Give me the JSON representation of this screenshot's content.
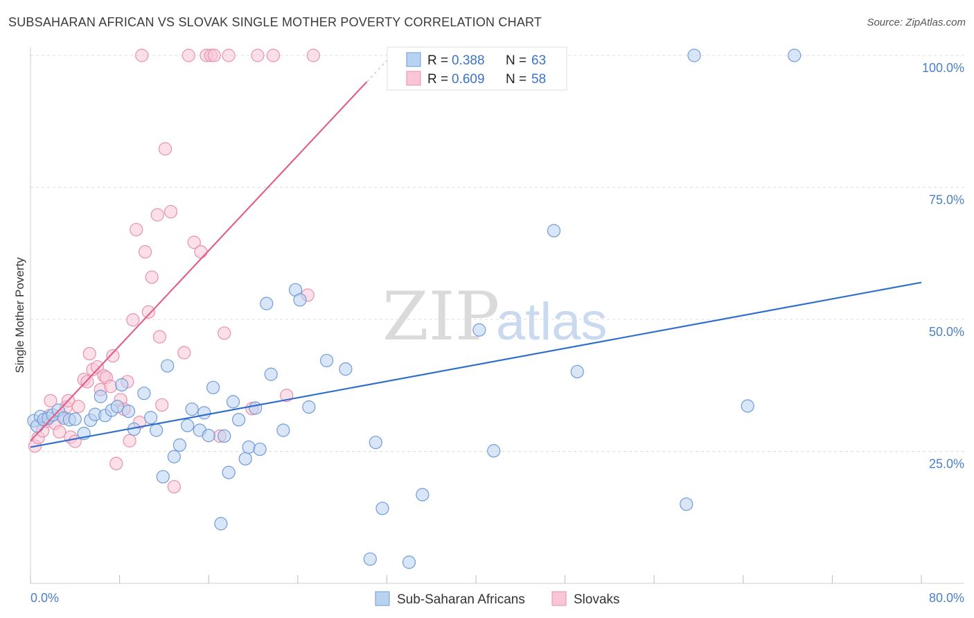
{
  "title": "SUBSAHARAN AFRICAN VS SLOVAK SINGLE MOTHER POVERTY CORRELATION CHART",
  "source": "Source: ZipAtlas.com",
  "watermark": {
    "zip": "ZIP",
    "atlas": "atlas"
  },
  "colors": {
    "blue_fill": "#b9d2f1",
    "blue_stroke": "#6f9bd6",
    "blue_line": "#2f6fcc",
    "pink_fill": "#f8c6d6",
    "pink_stroke": "#e98faf",
    "pink_line": "#e0608c",
    "grid": "#dddddd",
    "axis_text": "#4a7fc9"
  },
  "legend": {
    "r_label": "R =",
    "n_label": "N =",
    "blue": {
      "r": "0.388",
      "n": "63"
    },
    "pink": {
      "r": "0.609",
      "n": "58"
    }
  },
  "chart_data": {
    "type": "scatter",
    "title": "SUBSAHARAN AFRICAN VS SLOVAK SINGLE MOTHER POVERTY CORRELATION CHART",
    "xlabel": "",
    "ylabel": "Single Mother Poverty",
    "xlim": [
      0,
      80
    ],
    "ylim": [
      0,
      102
    ],
    "x_tick_labels": [
      "0.0%",
      "80.0%"
    ],
    "y_ticks": [
      25,
      50,
      75,
      100
    ],
    "y_tick_labels": [
      "25.0%",
      "50.0%",
      "75.0%",
      "100.0%"
    ],
    "grid": true,
    "legend_position": "top-center",
    "series": [
      {
        "name": "Sub-Saharan Africans",
        "r": 0.388,
        "n": 63,
        "trend": {
          "x": [
            0,
            80
          ],
          "y": [
            25.8,
            57.0
          ]
        },
        "points": [
          [
            0.3,
            30.8
          ],
          [
            0.6,
            29.8
          ],
          [
            0.9,
            31.6
          ],
          [
            1.2,
            31.0
          ],
          [
            1.6,
            31.3
          ],
          [
            2.0,
            31.9
          ],
          [
            2.5,
            32.8
          ],
          [
            3.0,
            31.3
          ],
          [
            3.5,
            31.0
          ],
          [
            4.0,
            31.1
          ],
          [
            4.8,
            28.4
          ],
          [
            5.4,
            30.9
          ],
          [
            5.8,
            32.0
          ],
          [
            6.3,
            35.4
          ],
          [
            6.7,
            31.8
          ],
          [
            7.3,
            32.8
          ],
          [
            7.8,
            33.5
          ],
          [
            8.2,
            37.6
          ],
          [
            8.8,
            32.6
          ],
          [
            9.3,
            29.2
          ],
          [
            10.2,
            36.0
          ],
          [
            10.8,
            31.4
          ],
          [
            11.3,
            29.0
          ],
          [
            11.9,
            20.2
          ],
          [
            12.3,
            41.2
          ],
          [
            12.9,
            24.0
          ],
          [
            13.4,
            26.2
          ],
          [
            14.1,
            29.9
          ],
          [
            14.5,
            33.0
          ],
          [
            15.2,
            29.0
          ],
          [
            15.6,
            32.3
          ],
          [
            16.0,
            28.0
          ],
          [
            16.4,
            37.1
          ],
          [
            17.1,
            11.3
          ],
          [
            17.4,
            27.9
          ],
          [
            17.8,
            21.0
          ],
          [
            18.2,
            34.4
          ],
          [
            18.7,
            31.0
          ],
          [
            19.3,
            23.6
          ],
          [
            19.6,
            25.8
          ],
          [
            20.2,
            33.2
          ],
          [
            20.6,
            25.4
          ],
          [
            21.2,
            53.0
          ],
          [
            21.6,
            39.6
          ],
          [
            22.7,
            29.0
          ],
          [
            23.8,
            55.6
          ],
          [
            24.2,
            53.7
          ],
          [
            25.0,
            33.4
          ],
          [
            26.6,
            42.2
          ],
          [
            28.3,
            40.6
          ],
          [
            30.5,
            4.6
          ],
          [
            31.0,
            26.7
          ],
          [
            31.6,
            14.2
          ],
          [
            34.0,
            4.0
          ],
          [
            35.2,
            16.8
          ],
          [
            40.3,
            48.0
          ],
          [
            41.6,
            25.1
          ],
          [
            47.0,
            66.8
          ],
          [
            49.1,
            40.1
          ],
          [
            58.9,
            15.0
          ],
          [
            59.6,
            100.0
          ],
          [
            64.4,
            33.6
          ],
          [
            68.6,
            100.0
          ]
        ]
      },
      {
        "name": "Slovaks",
        "r": 0.609,
        "n": 58,
        "trend": {
          "x": [
            0,
            30.2
          ],
          "y": [
            27.0,
            95.0
          ]
        },
        "points": [
          [
            0.4,
            26.0
          ],
          [
            0.7,
            27.6
          ],
          [
            1.1,
            28.9
          ],
          [
            1.4,
            30.7
          ],
          [
            1.7,
            31.8
          ],
          [
            1.8,
            34.6
          ],
          [
            2.2,
            30.3
          ],
          [
            2.6,
            28.7
          ],
          [
            2.8,
            31.8
          ],
          [
            3.2,
            33.4
          ],
          [
            3.4,
            34.6
          ],
          [
            3.6,
            27.7
          ],
          [
            4.0,
            26.9
          ],
          [
            4.3,
            33.5
          ],
          [
            4.8,
            38.6
          ],
          [
            5.1,
            38.2
          ],
          [
            5.3,
            43.5
          ],
          [
            5.6,
            40.5
          ],
          [
            6.0,
            41.0
          ],
          [
            6.3,
            36.7
          ],
          [
            6.6,
            39.3
          ],
          [
            6.8,
            39.0
          ],
          [
            7.2,
            37.3
          ],
          [
            7.4,
            43.1
          ],
          [
            7.7,
            22.7
          ],
          [
            8.1,
            34.8
          ],
          [
            8.4,
            33.0
          ],
          [
            8.7,
            38.2
          ],
          [
            8.9,
            27.0
          ],
          [
            9.2,
            49.9
          ],
          [
            9.5,
            67.0
          ],
          [
            9.8,
            30.5
          ],
          [
            10.0,
            100.0
          ],
          [
            10.3,
            62.8
          ],
          [
            10.6,
            51.4
          ],
          [
            10.9,
            58.0
          ],
          [
            11.4,
            69.8
          ],
          [
            11.6,
            46.7
          ],
          [
            11.8,
            33.8
          ],
          [
            12.1,
            82.3
          ],
          [
            12.6,
            70.4
          ],
          [
            12.9,
            18.3
          ],
          [
            13.8,
            43.7
          ],
          [
            14.2,
            100.0
          ],
          [
            14.7,
            64.6
          ],
          [
            15.3,
            62.8
          ],
          [
            15.8,
            100.0
          ],
          [
            16.2,
            100.0
          ],
          [
            16.5,
            100.0
          ],
          [
            17.0,
            27.9
          ],
          [
            17.4,
            47.4
          ],
          [
            17.8,
            100.0
          ],
          [
            19.9,
            33.1
          ],
          [
            20.4,
            100.0
          ],
          [
            21.8,
            100.0
          ],
          [
            23.0,
            35.6
          ],
          [
            24.9,
            54.6
          ],
          [
            25.4,
            100.0
          ]
        ]
      }
    ]
  },
  "bottom_legend": [
    "Sub-Saharan Africans",
    "Slovaks"
  ]
}
